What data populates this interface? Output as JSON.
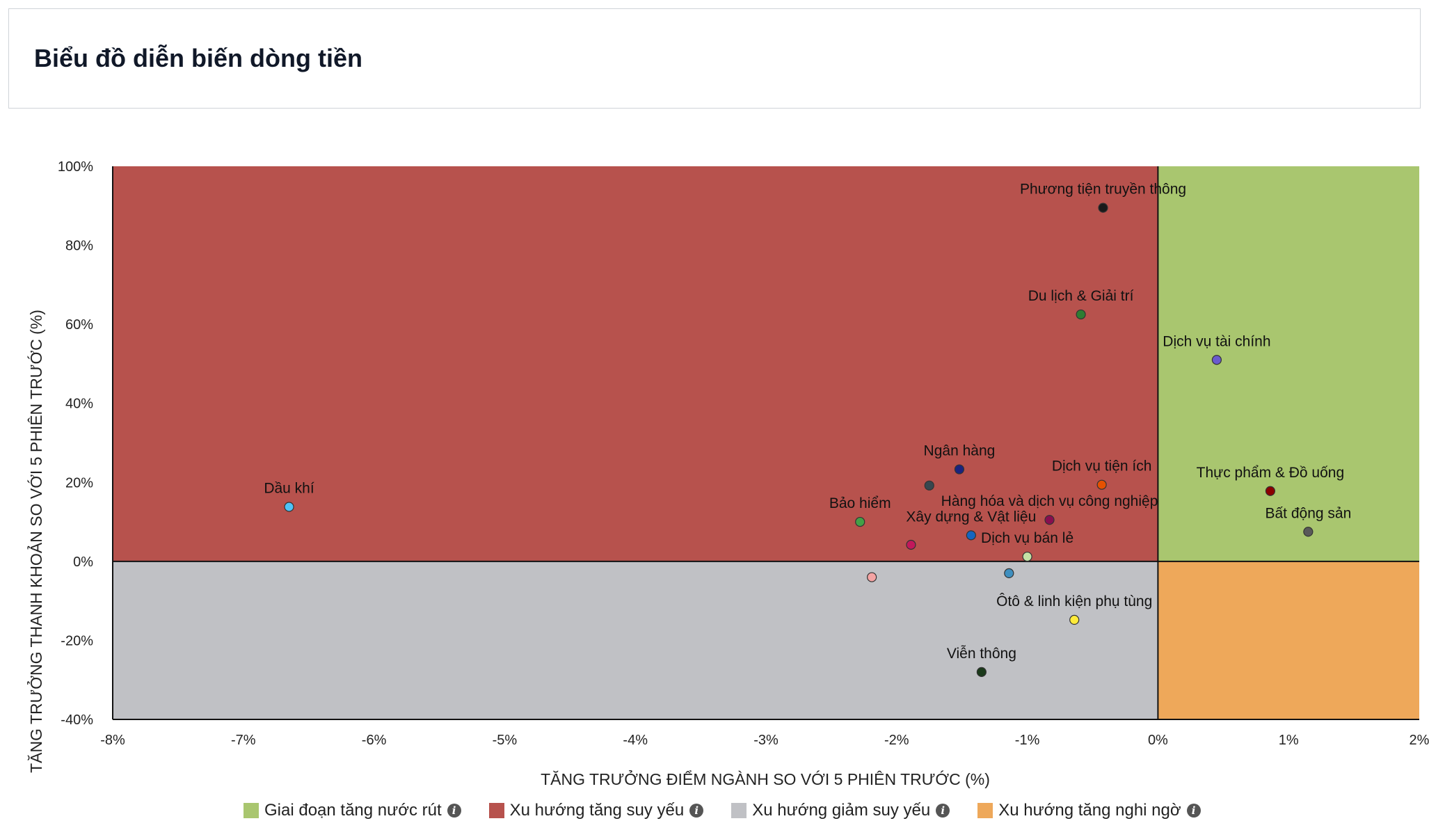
{
  "header": {
    "title": "Biểu đồ diễn biến dòng tiền"
  },
  "legend": [
    {
      "label": "Giai đoạn tăng nước rút",
      "color": "#a9c66f",
      "icon": "info-icon"
    },
    {
      "label": "Xu hướng tăng suy yếu",
      "color": "#b7524d",
      "icon": "info-icon"
    },
    {
      "label": "Xu hướng giảm suy yếu",
      "color": "#c0c1c5",
      "icon": "info-icon"
    },
    {
      "label": "Xu hướng tăng nghi ngờ",
      "color": "#eea85a",
      "icon": "info-icon"
    }
  ],
  "chart_data": {
    "type": "scatter",
    "xlabel": "TĂNG TRƯỞNG ĐIỂM NGÀNH SO VỚI 5 PHIÊN TRƯỚC (%)",
    "ylabel": "TĂNG TRƯỞNG THANH KHOẢN SO VỚI 5 PHIÊN TRƯỚC (%)",
    "xlim": [
      -8,
      2
    ],
    "ylim": [
      -40,
      100
    ],
    "x_ticks": [
      -8,
      -7,
      -6,
      -5,
      -4,
      -3,
      -2,
      -1,
      0,
      1,
      2
    ],
    "y_ticks": [
      -40,
      -20,
      0,
      20,
      40,
      60,
      80,
      100
    ],
    "tick_suffix": "%",
    "quadrants": {
      "top_right": "#a9c66f",
      "top_left": "#b7524d",
      "bottom_left": "#c0c1c5",
      "bottom_right": "#eea85a"
    },
    "points": [
      {
        "label": "Phương tiện truyền thông",
        "x": -0.42,
        "y": 89.5,
        "color": "#1a1a1a"
      },
      {
        "label": "Du lịch & Giải trí",
        "x": -0.59,
        "y": 62.5,
        "color": "#2e7d32"
      },
      {
        "label": "Dịch vụ tài chính",
        "x": 0.45,
        "y": 51,
        "color": "#6a5acd"
      },
      {
        "label": "Thực phẩm & Đồ uống",
        "x": 0.86,
        "y": 17.8,
        "color": "#8b0000"
      },
      {
        "label": "Bất động sản",
        "x": 1.15,
        "y": 7.5,
        "color": "#595959"
      },
      {
        "label": "Dầu khí",
        "x": -6.65,
        "y": 13.8,
        "color": "#4fc3f7"
      },
      {
        "label": "Ngân hàng",
        "x": -1.52,
        "y": 23.3,
        "color": "#1a237e"
      },
      {
        "label": "",
        "x": -1.75,
        "y": 19.2,
        "color": "#37474f"
      },
      {
        "label": "Dịch vụ tiện ích",
        "x": -0.43,
        "y": 19.4,
        "color": "#e65100"
      },
      {
        "label": "Hàng hóa và dịch vụ công nghiệp",
        "x": -0.83,
        "y": 10.5,
        "color": "#880e4f"
      },
      {
        "label": "Bảo hiểm",
        "x": -2.28,
        "y": 10,
        "color": "#43a047"
      },
      {
        "label": "Xây dựng & Vật liệu",
        "x": -1.43,
        "y": 6.6,
        "color": "#1565c0"
      },
      {
        "label": "",
        "x": -1.89,
        "y": 4.2,
        "color": "#c2185b"
      },
      {
        "label": "Dịch vụ bán lẻ",
        "x": -1.0,
        "y": 1.2,
        "color": "#c5e1a5"
      },
      {
        "label": "",
        "x": -2.19,
        "y": -4,
        "color": "#f4a3a3"
      },
      {
        "label": "",
        "x": -1.14,
        "y": -3,
        "color": "#3f8fbf"
      },
      {
        "label": "Ôtô & linh kiện phụ tùng",
        "x": -0.64,
        "y": -14.8,
        "color": "#ffeb3b"
      },
      {
        "label": "Viễn thông",
        "x": -1.35,
        "y": -28,
        "color": "#1b3a1b"
      }
    ]
  }
}
